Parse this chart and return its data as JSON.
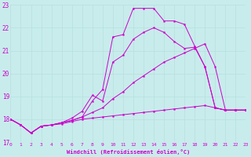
{
  "background_color": "#c8ecec",
  "grid_color": "#b8dede",
  "line_color": "#cc00cc",
  "marker_color": "#cc00cc",
  "xlabel": "Windchill (Refroidissement éolien,°C)",
  "xlim": [
    0,
    23
  ],
  "ylim": [
    17,
    23
  ],
  "yticks": [
    17,
    18,
    19,
    20,
    21,
    22,
    23
  ],
  "xticks": [
    0,
    1,
    2,
    3,
    4,
    5,
    6,
    7,
    8,
    9,
    10,
    11,
    12,
    13,
    14,
    15,
    16,
    17,
    18,
    19,
    20,
    21,
    22,
    23
  ],
  "series": [
    {
      "x": [
        0,
        1,
        2,
        3,
        4,
        5,
        6,
        7,
        8,
        9,
        10,
        11,
        12,
        13,
        14,
        15,
        16,
        17,
        18,
        19,
        20,
        21,
        22,
        23
      ],
      "y": [
        18.0,
        17.75,
        17.4,
        17.7,
        17.75,
        17.8,
        17.9,
        18.0,
        18.05,
        18.1,
        18.15,
        18.2,
        18.25,
        18.3,
        18.35,
        18.4,
        18.45,
        18.5,
        18.55,
        18.6,
        18.5,
        18.4,
        18.4,
        18.4
      ]
    },
    {
      "x": [
        0,
        1,
        2,
        3,
        4,
        5,
        6,
        7,
        8,
        9,
        10,
        11,
        12,
        13,
        14,
        15,
        16,
        17,
        18,
        19,
        20,
        21,
        22,
        23
      ],
      "y": [
        18.0,
        17.75,
        17.4,
        17.7,
        17.75,
        17.85,
        17.95,
        18.1,
        18.3,
        18.5,
        18.9,
        19.2,
        19.6,
        19.9,
        20.2,
        20.5,
        20.7,
        20.9,
        21.1,
        21.3,
        20.3,
        18.4,
        18.4,
        18.4
      ]
    },
    {
      "x": [
        0,
        1,
        2,
        3,
        4,
        5,
        6,
        7,
        8,
        9,
        10,
        11,
        12,
        13,
        14,
        15,
        16,
        17,
        18,
        19,
        20,
        21,
        22,
        23
      ],
      "y": [
        18.0,
        17.75,
        17.4,
        17.7,
        17.75,
        17.85,
        17.95,
        18.1,
        18.8,
        19.3,
        21.6,
        21.7,
        22.85,
        22.85,
        22.85,
        22.3,
        22.3,
        22.15,
        21.2,
        20.3,
        18.5,
        18.4,
        18.4,
        18.4
      ]
    },
    {
      "x": [
        0,
        1,
        2,
        3,
        4,
        5,
        6,
        7,
        8,
        9,
        10,
        11,
        12,
        13,
        14,
        15,
        16,
        17,
        18,
        19,
        20,
        21,
        22,
        23
      ],
      "y": [
        18.0,
        17.75,
        17.4,
        17.7,
        17.75,
        17.85,
        18.05,
        18.35,
        19.05,
        18.8,
        20.5,
        20.8,
        21.5,
        21.8,
        22.0,
        21.8,
        21.4,
        21.1,
        21.15,
        20.3,
        18.5,
        18.4,
        18.4,
        18.4
      ]
    }
  ]
}
